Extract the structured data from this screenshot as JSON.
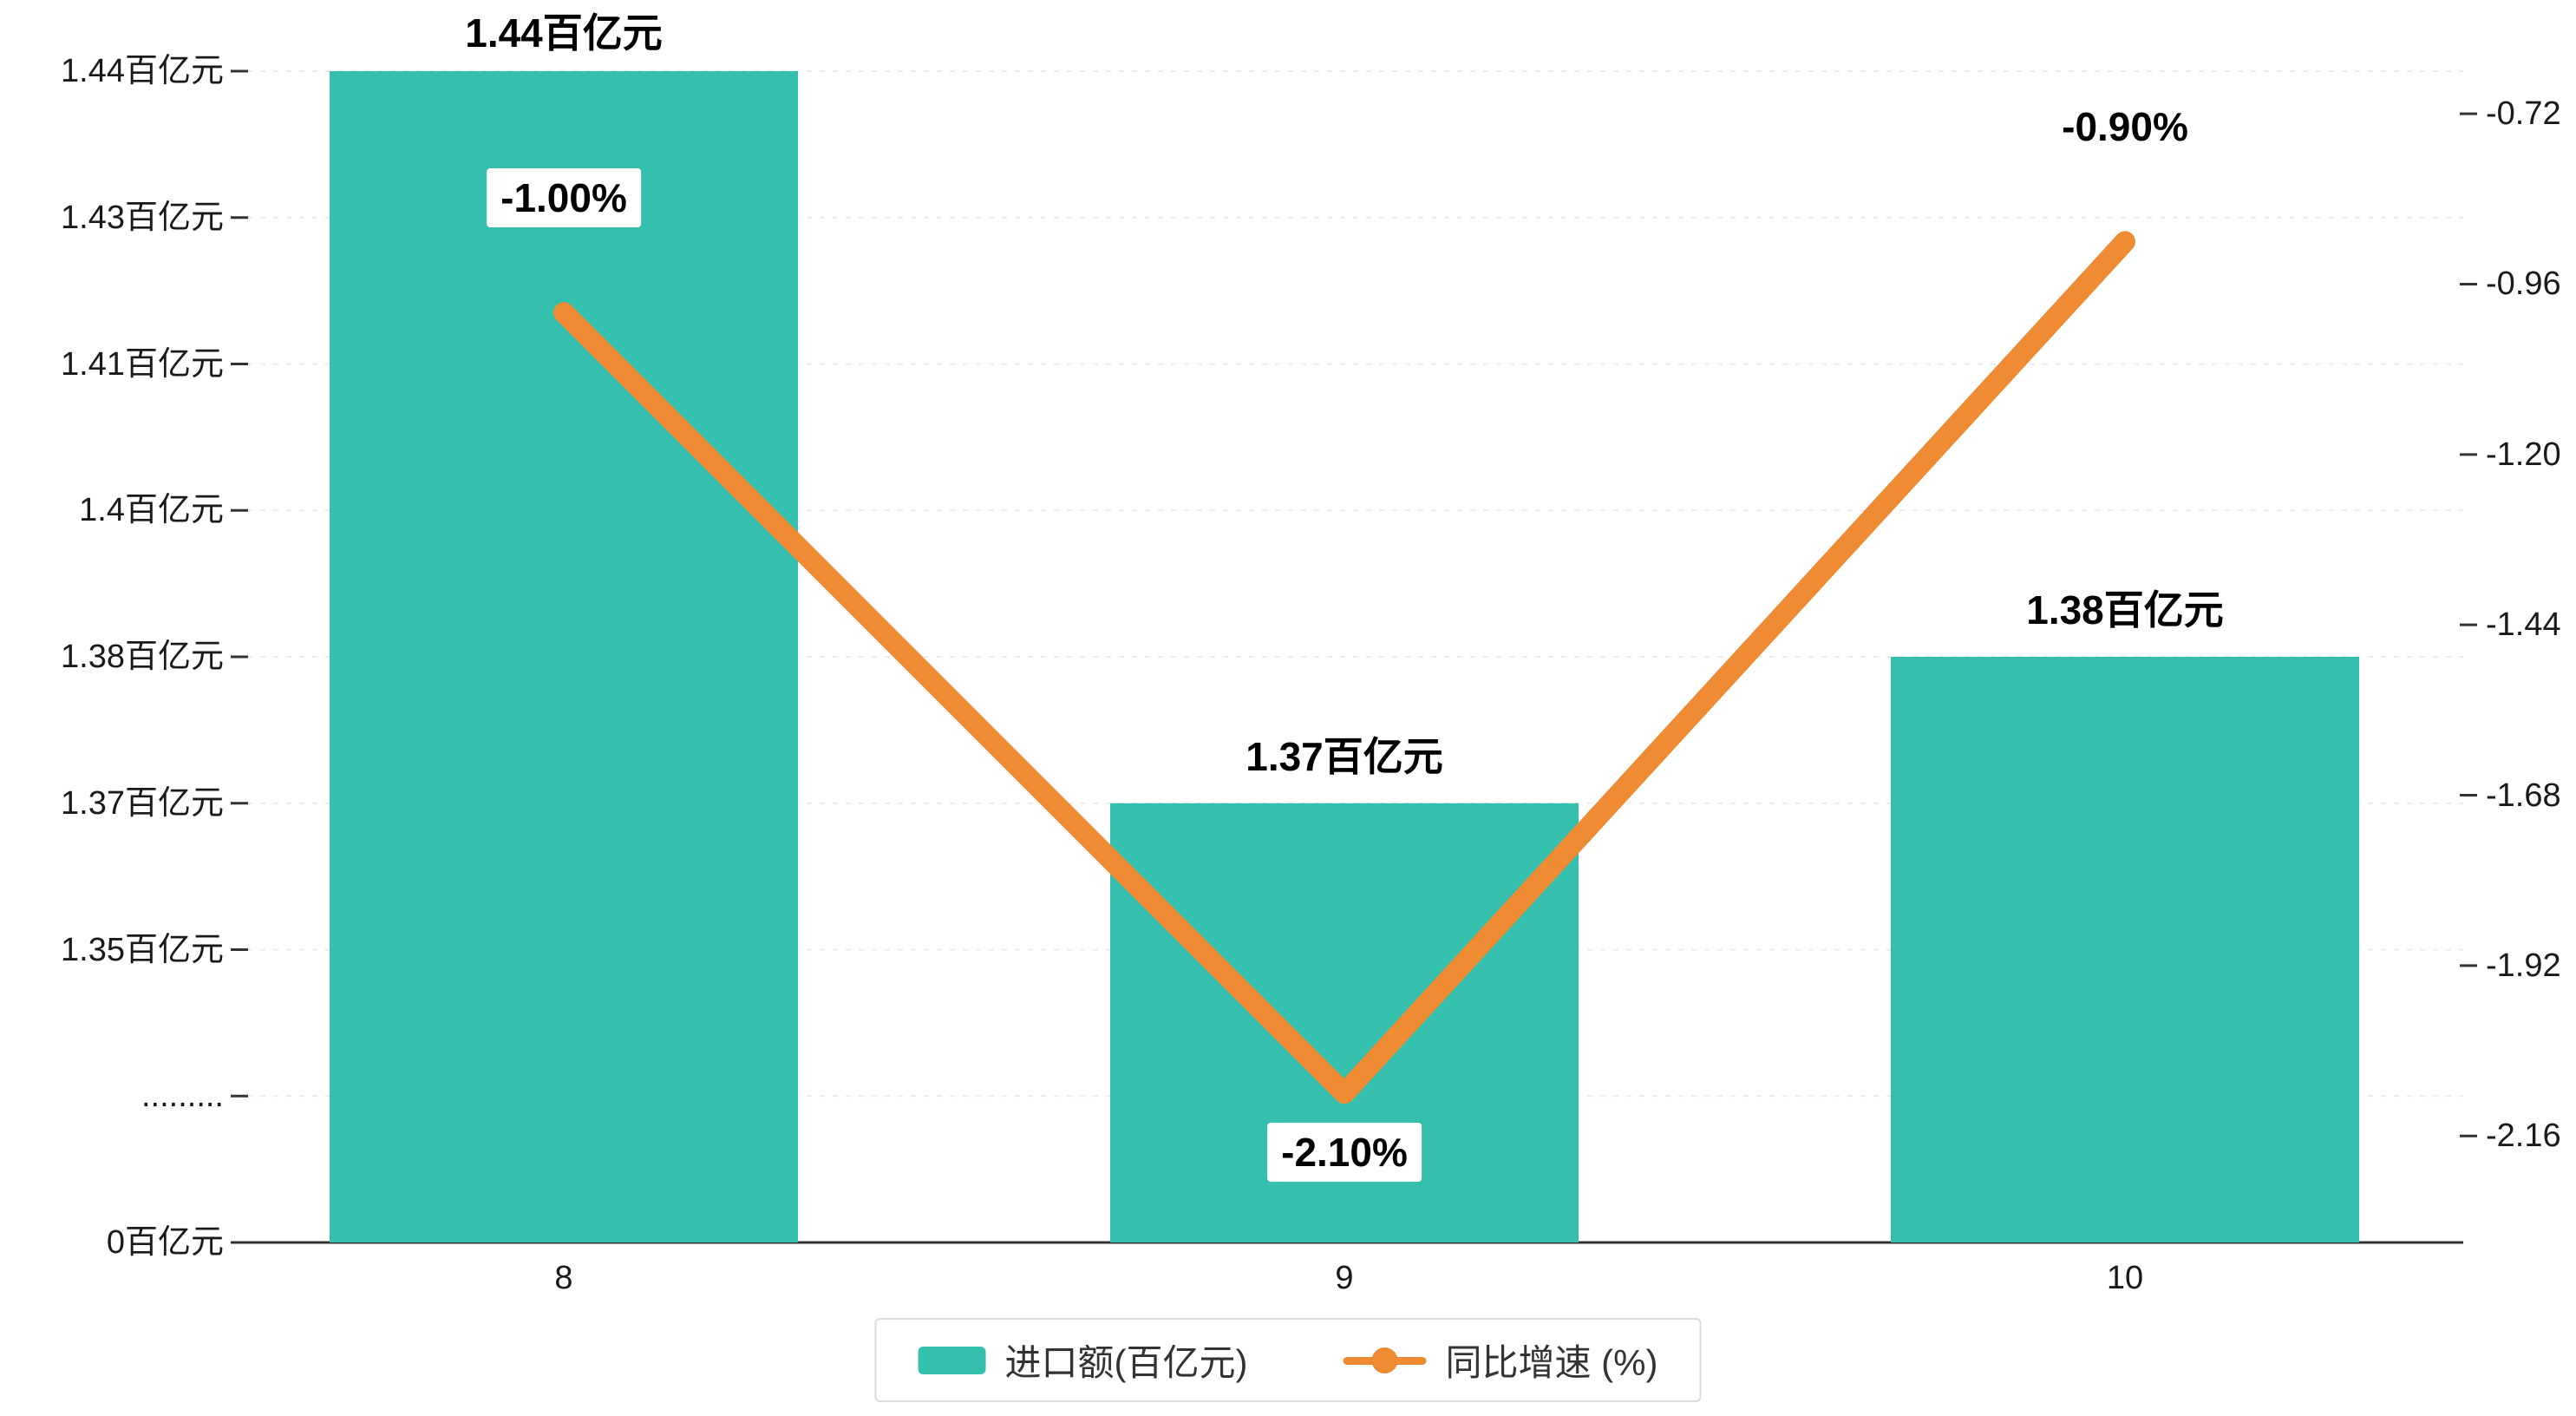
{
  "chart_data": {
    "type": "bar",
    "subtype": "bar-line-combo-dual-axis",
    "title": "",
    "categories": [
      "8",
      "9",
      "10"
    ],
    "series": [
      {
        "name": "进口额(百亿元)",
        "type": "bar",
        "axis": "left",
        "color": "#35bfad",
        "values": [
          1.44,
          1.37,
          1.38
        ],
        "value_labels": [
          "1.44百亿元",
          "1.37百亿元",
          "1.38百亿元"
        ]
      },
      {
        "name": "同比增速 (%)",
        "type": "line",
        "axis": "right",
        "color": "#ee8b33",
        "values": [
          -1.0,
          -2.1,
          -0.9
        ],
        "value_labels": [
          "-1.00%",
          "-2.10%",
          "-0.90%"
        ],
        "label_placement": [
          "above",
          "below",
          "above"
        ]
      }
    ],
    "left_axis": {
      "unit": "百亿元",
      "has_axis_break": true,
      "ticks_bottom_to_top": [
        {
          "label": "0百亿元",
          "value": 0
        },
        {
          "label": ".........",
          "value": null
        },
        {
          "label": "1.35百亿元",
          "value": 1.35
        },
        {
          "label": "1.37百亿元",
          "value": 1.37
        },
        {
          "label": "1.38百亿元",
          "value": 1.38
        },
        {
          "label": "1.4百亿元",
          "value": 1.4
        },
        {
          "label": "1.41百亿元",
          "value": 1.41
        },
        {
          "label": "1.43百亿元",
          "value": 1.43
        },
        {
          "label": "1.44百亿元",
          "value": 1.44
        }
      ]
    },
    "right_axis": {
      "tick_labels_top_to_bottom": [
        "-0.72",
        "-0.96",
        "-1.20",
        "-1.44",
        "-1.68",
        "-1.92",
        "-2.16"
      ],
      "tick_values_top_to_bottom": [
        -0.72,
        -0.96,
        -1.2,
        -1.44,
        -1.68,
        -1.92,
        -2.16
      ],
      "range_min_to_max": [
        -2.31,
        -0.66
      ]
    },
    "legend": {
      "position": "bottom-center",
      "items": [
        "进口额(百亿元)",
        "同比增速 (%)"
      ]
    },
    "grid": {
      "horizontal_dashed": true,
      "vertical": false
    }
  }
}
